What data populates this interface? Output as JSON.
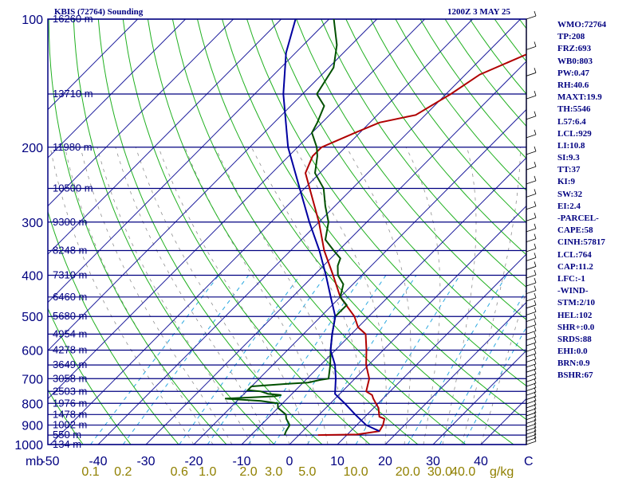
{
  "header": {
    "title": "KBIS (72764) Sounding",
    "datetime": "1200Z  3 MAY 25"
  },
  "indices": [
    "WMO:72764",
    "TP:208",
    "FRZ:693",
    "WB0:803",
    "PW:0.47",
    "RH:40.6",
    "MAXT:19.9",
    "TH:5546",
    "L57:6.4",
    "LCL:929",
    "LI:10.8",
    "SI:9.3",
    "TT:37",
    "KI:9",
    "SW:32",
    "EI:2.4",
    "-PARCEL-",
    "CAPE:58",
    "CINH:57817",
    "LCL:764",
    "CAP:11.2",
    "LFC:-1",
    "-WIND-",
    "STM:2/10",
    "HEL:102",
    "SHR+:0.0",
    "SRDS:88",
    "EHI:0.0",
    "BRN:0.9",
    "BSHR:67"
  ],
  "colors": {
    "isobar": "#000080",
    "isotherm": "#1c1c9c",
    "dry_adiabat": "#20b020",
    "moist_adiabat": "#909090",
    "mixing_ratio": "#2aa8e0",
    "temperature": "#b00000",
    "dewpoint": "#005000",
    "parcel": "#0000a0",
    "label": "#000080",
    "mixing_label": "#908000"
  },
  "chart_data": {
    "type": "line",
    "title": "KBIS (72764) Sounding",
    "xlabel": "C",
    "ylabel": "mb",
    "mixing_ratio_unit": "g/kg",
    "xlim": [
      -50,
      50
    ],
    "ylim": [
      1000,
      100
    ],
    "pressure_ticks": [
      100,
      200,
      300,
      400,
      500,
      600,
      700,
      800,
      900,
      1000
    ],
    "temperature_ticks": [
      "-50",
      "-40",
      "-30",
      "-20",
      "-10",
      "0",
      "10",
      "20",
      "30",
      "40"
    ],
    "mixing_ratio_ticks": [
      "0.1",
      "0.2",
      "0.6",
      "1.0",
      "2.0",
      "3.0",
      "5.0",
      "10.0",
      "20.0",
      "30.0",
      "40.0"
    ],
    "heights": [
      {
        "p": 100,
        "label": "16260 m"
      },
      {
        "p": 150,
        "label": "13710 m"
      },
      {
        "p": 200,
        "label": "11980 m"
      },
      {
        "p": 250,
        "label": "10500 m"
      },
      {
        "p": 300,
        "label": "9300 m"
      },
      {
        "p": 350,
        "label": "8248 m"
      },
      {
        "p": 400,
        "label": "7310 m"
      },
      {
        "p": 450,
        "label": "6460 m"
      },
      {
        "p": 500,
        "label": "5680 m"
      },
      {
        "p": 550,
        "label": "4954 m"
      },
      {
        "p": 600,
        "label": "4278 m"
      },
      {
        "p": 650,
        "label": "3649 m"
      },
      {
        "p": 700,
        "label": "3058 m"
      },
      {
        "p": 750,
        "label": "2503 m"
      },
      {
        "p": 800,
        "label": "1976 m"
      },
      {
        "p": 850,
        "label": "1478 m"
      },
      {
        "p": 900,
        "label": "1002 m"
      },
      {
        "p": 950,
        "label": "550 m"
      },
      {
        "p": 1000,
        "label": "134 m"
      }
    ],
    "series": [
      {
        "key": "temperature",
        "points": [
          [
            950,
            4
          ],
          [
            947,
            12
          ],
          [
            930,
            16
          ],
          [
            900,
            15.5
          ],
          [
            870,
            14.5
          ],
          [
            860,
            13
          ],
          [
            840,
            12
          ],
          [
            820,
            11
          ],
          [
            800,
            9.5
          ],
          [
            780,
            8
          ],
          [
            765,
            7
          ],
          [
            750,
            5
          ],
          [
            700,
            3
          ],
          [
            650,
            -0.5
          ],
          [
            600,
            -3.5
          ],
          [
            550,
            -7
          ],
          [
            530,
            -10
          ],
          [
            500,
            -13
          ],
          [
            450,
            -20
          ],
          [
            400,
            -26
          ],
          [
            350,
            -33
          ],
          [
            300,
            -40
          ],
          [
            260,
            -47
          ],
          [
            230,
            -53
          ],
          [
            210,
            -55
          ],
          [
            200,
            -55
          ],
          [
            185,
            -51
          ],
          [
            175,
            -48
          ],
          [
            168,
            -42
          ],
          [
            150,
            -39
          ],
          [
            135,
            -37
          ],
          [
            120,
            -31
          ],
          [
            100,
            -22
          ]
        ]
      },
      {
        "key": "dewpoint",
        "points": [
          [
            950,
            -3
          ],
          [
            930,
            -3.5
          ],
          [
            900,
            -4
          ],
          [
            870,
            -6
          ],
          [
            850,
            -7
          ],
          [
            820,
            -10
          ],
          [
            800,
            -11
          ],
          [
            790,
            -15
          ],
          [
            780,
            -23
          ],
          [
            770,
            -13
          ],
          [
            765,
            -12
          ],
          [
            760,
            -15
          ],
          [
            750,
            -17
          ],
          [
            745,
            -20
          ],
          [
            730,
            -20
          ],
          [
            720,
            -13
          ],
          [
            715,
            -9
          ],
          [
            705,
            -7
          ],
          [
            700,
            -5.5
          ],
          [
            650,
            -8
          ],
          [
            600,
            -11
          ],
          [
            550,
            -14
          ],
          [
            500,
            -17
          ],
          [
            470,
            -17
          ],
          [
            450,
            -20
          ],
          [
            420,
            -22
          ],
          [
            400,
            -25
          ],
          [
            380,
            -27
          ],
          [
            365,
            -28
          ],
          [
            350,
            -31
          ],
          [
            330,
            -35
          ],
          [
            300,
            -38
          ],
          [
            275,
            -42
          ],
          [
            250,
            -46
          ],
          [
            230,
            -51
          ],
          [
            210,
            -54
          ],
          [
            200,
            -56
          ],
          [
            185,
            -60
          ],
          [
            175,
            -61
          ],
          [
            160,
            -63
          ],
          [
            150,
            -67
          ],
          [
            130,
            -69
          ],
          [
            115,
            -73
          ],
          [
            100,
            -79
          ]
        ]
      },
      {
        "key": "parcel",
        "points": [
          [
            930,
            16
          ],
          [
            900,
            12
          ],
          [
            850,
            7.5
          ],
          [
            800,
            3
          ],
          [
            780,
            1
          ],
          [
            760,
            -1
          ],
          [
            700,
            -4
          ],
          [
            650,
            -7
          ],
          [
            600,
            -11
          ],
          [
            550,
            -14
          ],
          [
            500,
            -17
          ],
          [
            450,
            -22
          ],
          [
            400,
            -27.5
          ],
          [
            350,
            -34
          ],
          [
            300,
            -42
          ],
          [
            250,
            -51
          ],
          [
            200,
            -62
          ],
          [
            150,
            -74
          ],
          [
            120,
            -82
          ],
          [
            100,
            -87
          ]
        ]
      }
    ]
  }
}
